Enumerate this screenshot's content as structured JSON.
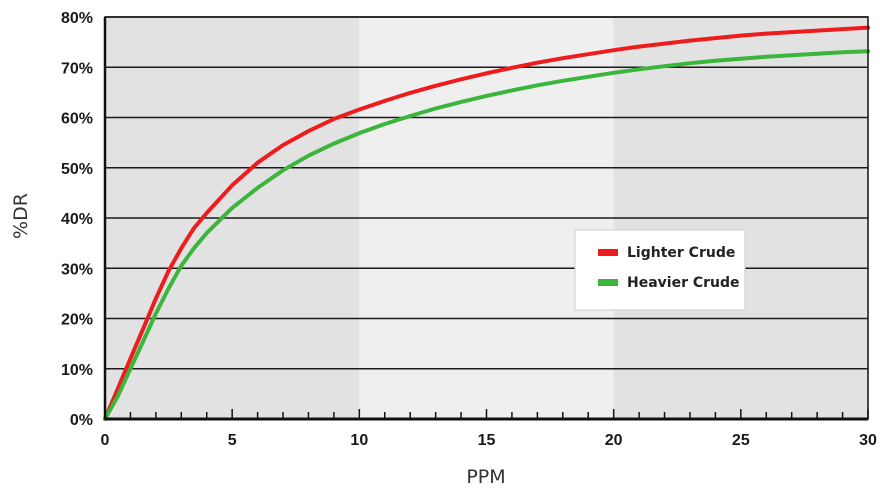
{
  "chart_data": {
    "type": "line",
    "title": "",
    "xlabel": "PPM",
    "ylabel": "%DR",
    "xlim": [
      0,
      30
    ],
    "ylim": [
      0,
      80
    ],
    "x_ticks": [
      "0",
      "5",
      "10",
      "15",
      "20",
      "25",
      "30"
    ],
    "y_ticks": [
      "0%",
      "10%",
      "20%",
      "30%",
      "40%",
      "50%",
      "60%",
      "70%",
      "80%"
    ],
    "x_minor_step": 1,
    "grid": "horizontal",
    "shaded_bands": [
      {
        "from": 0,
        "to": 10,
        "color": "#e2e2e2"
      },
      {
        "from": 10,
        "to": 20,
        "color": "#efefef"
      },
      {
        "from": 20,
        "to": 30,
        "color": "#e2e2e2"
      }
    ],
    "legend": "center-right",
    "series": [
      {
        "name": "Lighter Crude",
        "color": "#ee1c1c",
        "x": [
          0,
          0.5,
          1,
          1.5,
          2,
          2.5,
          3,
          3.5,
          4,
          5,
          6,
          7,
          8,
          9,
          10,
          11,
          12,
          13,
          14,
          15,
          16,
          17,
          18,
          19,
          20,
          21,
          22,
          23,
          24,
          25,
          26,
          27,
          28,
          29,
          30
        ],
        "y": [
          0,
          6,
          12,
          18,
          24,
          29.5,
          34,
          38,
          41,
          46.5,
          51,
          54.5,
          57.3,
          59.7,
          61.6,
          63.3,
          64.9,
          66.3,
          67.6,
          68.8,
          69.9,
          70.9,
          71.8,
          72.6,
          73.4,
          74.1,
          74.7,
          75.3,
          75.8,
          76.3,
          76.7,
          77,
          77.3,
          77.6,
          77.9
        ]
      },
      {
        "name": "Heavier Crude",
        "color": "#3cb53c",
        "x": [
          0,
          0.5,
          1,
          1.5,
          2,
          2.5,
          3,
          3.5,
          4,
          5,
          6,
          7,
          8,
          9,
          10,
          11,
          12,
          13,
          14,
          15,
          16,
          17,
          18,
          19,
          20,
          21,
          22,
          23,
          24,
          25,
          26,
          27,
          28,
          29,
          30
        ],
        "y": [
          0,
          4.5,
          10,
          15.5,
          21,
          26,
          30.5,
          34,
          37,
          42,
          46,
          49.5,
          52.4,
          54.8,
          56.9,
          58.7,
          60.3,
          61.8,
          63.1,
          64.3,
          65.4,
          66.4,
          67.3,
          68.1,
          68.9,
          69.6,
          70.2,
          70.8,
          71.3,
          71.7,
          72.1,
          72.4,
          72.7,
          73,
          73.2
        ]
      }
    ]
  }
}
